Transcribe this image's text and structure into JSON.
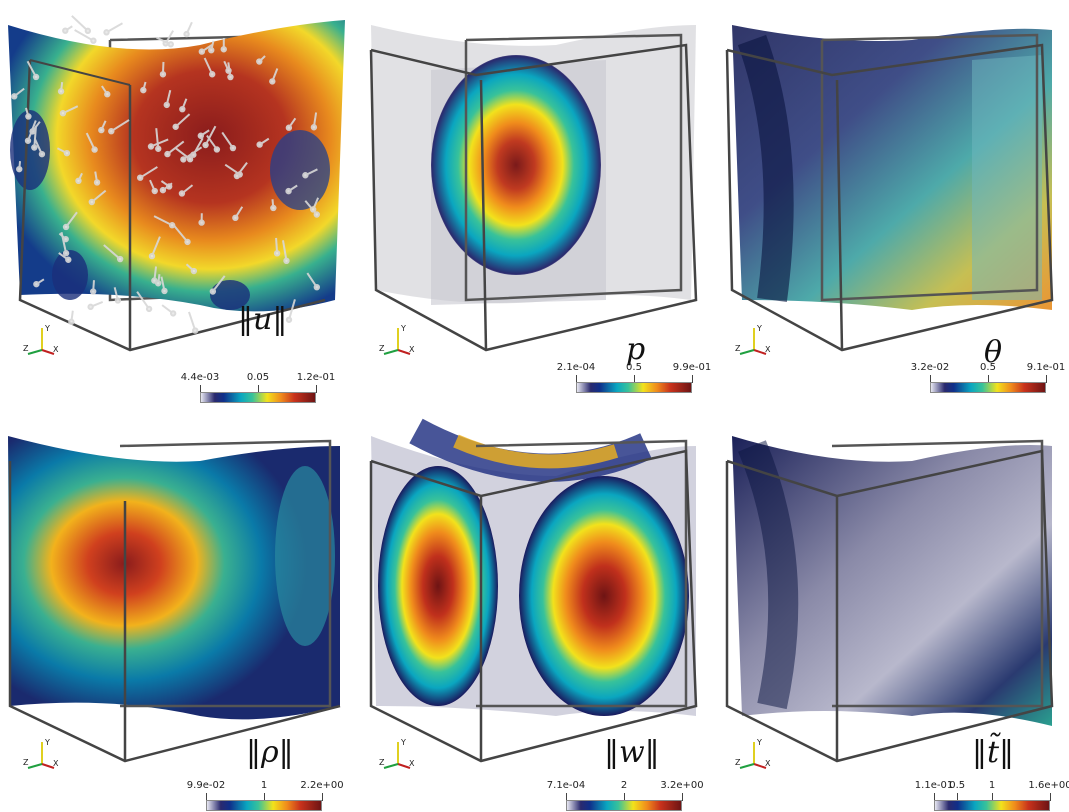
{
  "colormaps": {
    "jet": "linear-gradient(to right,#e8e8f2 0%,#2a2a6e 12%,#0f2f8a 20%,#0aa6c0 35%,#38c29a 45%,#f2e21c 58%,#f08c1c 70%,#c8321c 82%,#6e1414 100%)"
  },
  "panels": [
    {
      "id": "u",
      "symbol": "‖u‖",
      "ticks": [
        "4.4e-03",
        "0.05",
        "1.2e-01"
      ],
      "arrows": true
    },
    {
      "id": "p",
      "symbol": "p",
      "ticks": [
        "2.1e-04",
        "0.5",
        "9.9e-01"
      ],
      "arrows": false
    },
    {
      "id": "theta",
      "symbol": "θ",
      "ticks": [
        "3.2e-02",
        "0.5",
        "9.1e-01"
      ],
      "arrows": false
    },
    {
      "id": "rho",
      "symbol": "‖ρ‖",
      "ticks": [
        "9.9e-02",
        "1",
        "2.2e+00"
      ],
      "arrows": false
    },
    {
      "id": "w",
      "symbol": "‖w‖",
      "ticks": [
        "7.1e-04",
        "2",
        "3.2e+00"
      ],
      "arrows": false
    },
    {
      "id": "t",
      "symbol": "‖t̃‖",
      "ticks": [
        "1.1e-01",
        "0.5",
        "1",
        "1.6e+00"
      ],
      "arrows": false
    }
  ],
  "triad_labels": {
    "x": "X",
    "y": "Y",
    "z": "Z"
  }
}
